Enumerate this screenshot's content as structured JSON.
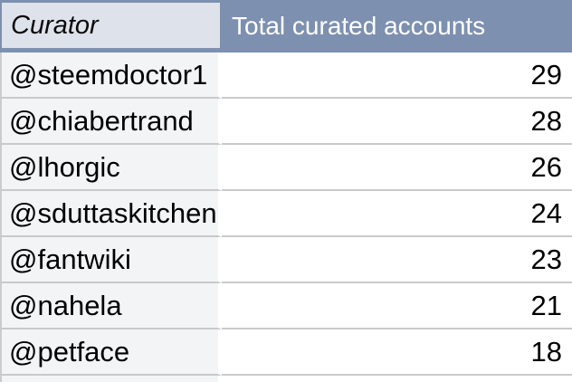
{
  "header": {
    "curator_label": "Curator",
    "total_label": "Total curated accounts"
  },
  "rows": [
    {
      "curator": "@steemdoctor1",
      "total": 29
    },
    {
      "curator": "@chiabertrand",
      "total": 28
    },
    {
      "curator": "@lhorgic",
      "total": 26
    },
    {
      "curator": "@sduttaskitchen",
      "total": 24
    },
    {
      "curator": "@fantwiki",
      "total": 23
    },
    {
      "curator": "@nahela",
      "total": 21
    },
    {
      "curator": "@petface",
      "total": 18
    }
  ],
  "chart_data": {
    "type": "table",
    "title": "",
    "columns": [
      "Curator",
      "Total curated accounts"
    ],
    "categories": [
      "@steemdoctor1",
      "@chiabertrand",
      "@lhorgic",
      "@sduttaskitchen",
      "@fantwiki",
      "@nahela",
      "@petface"
    ],
    "values": [
      29,
      28,
      26,
      24,
      23,
      21,
      18
    ]
  },
  "colors": {
    "header_bg": "#7d90af",
    "header_curator_cell_bg": "#dee2ea",
    "header_text": "#ffffff",
    "curator_column_bg": "#f3f4f6",
    "value_column_bg": "#ffffff",
    "separator": "#c7c9ca",
    "text": "#000000"
  }
}
